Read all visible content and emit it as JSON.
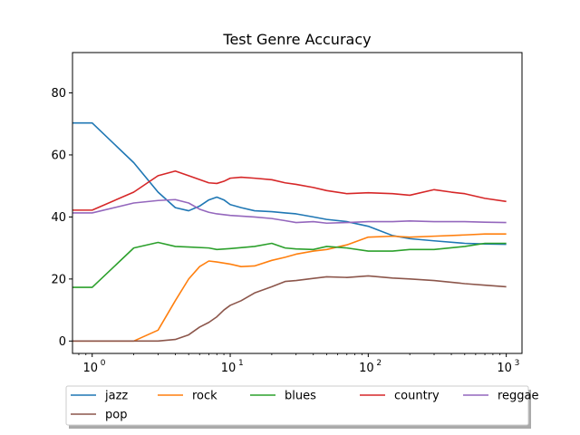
{
  "chart_data": {
    "type": "line",
    "title": "Test Genre Accuracy",
    "xlabel": "",
    "ylabel": "",
    "xscale": "log",
    "xlim": [
      0.72,
      1300
    ],
    "ylim": [
      -4,
      93
    ],
    "grid": false,
    "legend_placement": "below plot, shadowed box, 5 columns",
    "x_ticks": [
      {
        "value": 1,
        "label": "10",
        "exp": "0"
      },
      {
        "value": 10,
        "label": "10",
        "exp": "1"
      },
      {
        "value": 100,
        "label": "10",
        "exp": "2"
      },
      {
        "value": 1000,
        "label": "10",
        "exp": "3"
      }
    ],
    "y_ticks": [
      0,
      20,
      40,
      60,
      80
    ],
    "series": [
      {
        "name": "jazz",
        "color": "#1f77b4",
        "points": [
          [
            0.72,
            70.3
          ],
          [
            1,
            70.3
          ],
          [
            2,
            57.5
          ],
          [
            3,
            48
          ],
          [
            4,
            43
          ],
          [
            5,
            42
          ],
          [
            6,
            43.5
          ],
          [
            7,
            45.5
          ],
          [
            8,
            46.4
          ],
          [
            9,
            45.5
          ],
          [
            10,
            44
          ],
          [
            12,
            43
          ],
          [
            15,
            42
          ],
          [
            20,
            41.7
          ],
          [
            25,
            41.3
          ],
          [
            30,
            41
          ],
          [
            40,
            40
          ],
          [
            50,
            39.2
          ],
          [
            70,
            38.5
          ],
          [
            100,
            37
          ],
          [
            150,
            34
          ],
          [
            200,
            33
          ],
          [
            300,
            32.3
          ],
          [
            500,
            31.5
          ],
          [
            700,
            31.3
          ],
          [
            1000,
            31.2
          ]
        ]
      },
      {
        "name": "rock",
        "color": "#ff7f0e",
        "points": [
          [
            0.72,
            0
          ],
          [
            1,
            0
          ],
          [
            2,
            0
          ],
          [
            3,
            3.5
          ],
          [
            4,
            13
          ],
          [
            5,
            20
          ],
          [
            6,
            24
          ],
          [
            7,
            25.8
          ],
          [
            8,
            25.5
          ],
          [
            10,
            24.8
          ],
          [
            12,
            24
          ],
          [
            15,
            24.2
          ],
          [
            20,
            26
          ],
          [
            25,
            27
          ],
          [
            30,
            28
          ],
          [
            40,
            29
          ],
          [
            50,
            29.5
          ],
          [
            70,
            31
          ],
          [
            100,
            33.5
          ],
          [
            150,
            33.8
          ],
          [
            200,
            33.5
          ],
          [
            300,
            33.8
          ],
          [
            500,
            34.2
          ],
          [
            700,
            34.5
          ],
          [
            1000,
            34.5
          ]
        ]
      },
      {
        "name": "blues",
        "color": "#2ca02c",
        "points": [
          [
            0.72,
            17.3
          ],
          [
            1,
            17.3
          ],
          [
            2,
            30
          ],
          [
            3,
            31.8
          ],
          [
            4,
            30.5
          ],
          [
            5,
            30.3
          ],
          [
            7,
            30
          ],
          [
            8,
            29.5
          ],
          [
            10,
            29.8
          ],
          [
            15,
            30.5
          ],
          [
            20,
            31.5
          ],
          [
            25,
            30
          ],
          [
            30,
            29.7
          ],
          [
            40,
            29.5
          ],
          [
            50,
            30.5
          ],
          [
            70,
            30
          ],
          [
            100,
            29
          ],
          [
            150,
            29
          ],
          [
            200,
            29.5
          ],
          [
            300,
            29.5
          ],
          [
            500,
            30.5
          ],
          [
            700,
            31.5
          ],
          [
            1000,
            31.5
          ]
        ]
      },
      {
        "name": "country",
        "color": "#d62728",
        "points": [
          [
            0.72,
            42.2
          ],
          [
            1,
            42.2
          ],
          [
            2,
            48
          ],
          [
            3,
            53.3
          ],
          [
            4,
            54.8
          ],
          [
            5,
            53.3
          ],
          [
            7,
            51
          ],
          [
            8,
            50.8
          ],
          [
            9,
            51.5
          ],
          [
            10,
            52.5
          ],
          [
            12,
            52.8
          ],
          [
            15,
            52.5
          ],
          [
            20,
            52
          ],
          [
            25,
            51
          ],
          [
            30,
            50.5
          ],
          [
            40,
            49.5
          ],
          [
            50,
            48.5
          ],
          [
            70,
            47.5
          ],
          [
            100,
            47.8
          ],
          [
            150,
            47.5
          ],
          [
            200,
            47
          ],
          [
            300,
            48.8
          ],
          [
            400,
            48
          ],
          [
            500,
            47.5
          ],
          [
            700,
            46
          ],
          [
            1000,
            45
          ]
        ]
      },
      {
        "name": "reggae",
        "color": "#9467bd",
        "points": [
          [
            0.72,
            41.3
          ],
          [
            1,
            41.3
          ],
          [
            2,
            44.5
          ],
          [
            3,
            45.3
          ],
          [
            4,
            45.6
          ],
          [
            5,
            44.5
          ],
          [
            6,
            42.5
          ],
          [
            7,
            41.5
          ],
          [
            8,
            41
          ],
          [
            10,
            40.5
          ],
          [
            15,
            40
          ],
          [
            20,
            39.5
          ],
          [
            25,
            38.8
          ],
          [
            30,
            38.2
          ],
          [
            40,
            38.5
          ],
          [
            50,
            38
          ],
          [
            70,
            38.2
          ],
          [
            100,
            38.5
          ],
          [
            150,
            38.5
          ],
          [
            200,
            38.7
          ],
          [
            300,
            38.5
          ],
          [
            500,
            38.5
          ],
          [
            700,
            38.3
          ],
          [
            1000,
            38.2
          ]
        ]
      },
      {
        "name": "pop",
        "color": "#8c564b",
        "points": [
          [
            0.72,
            0
          ],
          [
            1,
            0
          ],
          [
            2,
            0
          ],
          [
            3,
            0
          ],
          [
            4,
            0.5
          ],
          [
            5,
            2
          ],
          [
            6,
            4.5
          ],
          [
            7,
            6
          ],
          [
            8,
            7.8
          ],
          [
            9,
            10
          ],
          [
            10,
            11.5
          ],
          [
            12,
            13
          ],
          [
            15,
            15.5
          ],
          [
            20,
            17.5
          ],
          [
            25,
            19.2
          ],
          [
            30,
            19.5
          ],
          [
            40,
            20.2
          ],
          [
            50,
            20.7
          ],
          [
            70,
            20.5
          ],
          [
            100,
            21
          ],
          [
            150,
            20.3
          ],
          [
            200,
            20
          ],
          [
            300,
            19.5
          ],
          [
            500,
            18.5
          ],
          [
            700,
            18
          ],
          [
            1000,
            17.5
          ]
        ]
      }
    ]
  }
}
